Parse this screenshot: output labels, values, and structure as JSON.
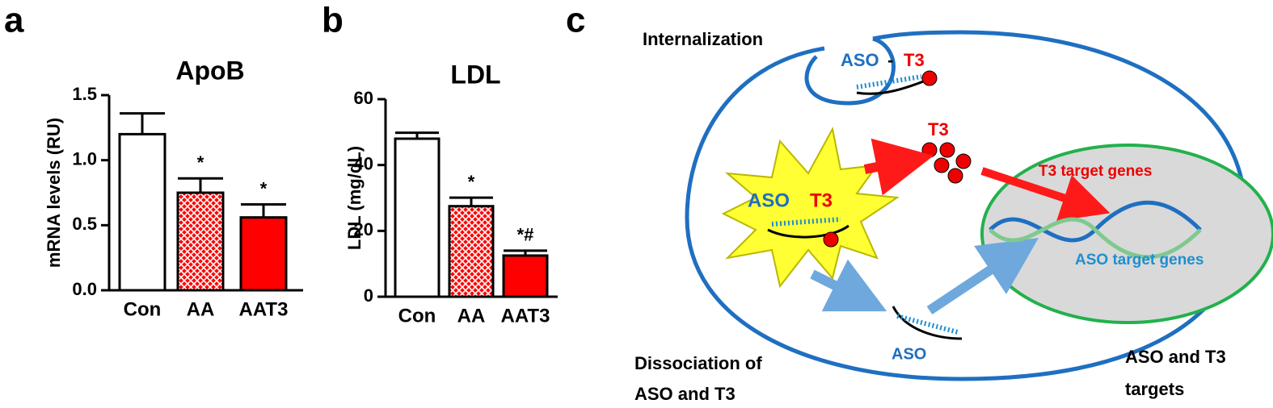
{
  "chart_data": [
    {
      "type": "bar",
      "panel": "a",
      "title": "ApoB",
      "y_label": "mRNA levels (RU)",
      "categories": [
        "Con",
        "AA",
        "AAT3"
      ],
      "values": [
        1.2,
        0.75,
        0.56
      ],
      "errors": [
        0.16,
        0.11,
        0.1
      ],
      "annotations": [
        null,
        "*",
        "*"
      ],
      "colors": [
        "#ffffff",
        "#ff0000",
        "#ff0000"
      ],
      "patterns": [
        "solid",
        "crosshatch",
        "solid"
      ],
      "ylim": [
        0,
        1.5
      ],
      "yticks": [
        {
          "value": 0,
          "label": "0.0"
        },
        0.5,
        {
          "value": 1,
          "label": "1.0"
        },
        1.5
      ]
    },
    {
      "type": "bar",
      "panel": "b",
      "title": "LDL",
      "y_label": "LDL (mg/dL)",
      "categories": [
        "Con",
        "AA",
        "AAT3"
      ],
      "values": [
        48,
        27.5,
        12.5
      ],
      "errors": [
        1.8,
        2.6,
        1.5
      ],
      "annotations": [
        null,
        "*",
        "*#"
      ],
      "colors": [
        "#ffffff",
        "#ff0000",
        "#ff0000"
      ],
      "patterns": [
        "solid",
        "crosshatch",
        "solid"
      ],
      "ylim": [
        0,
        60
      ],
      "yticks": [
        0,
        20,
        40,
        60
      ]
    }
  ],
  "diagram": {
    "panel": "c",
    "internalization": "Internalization",
    "vesicle": {
      "aso": "ASO",
      "dash": "-",
      "t3": "T3"
    },
    "free_t3": "T3",
    "complex": {
      "aso": "ASO",
      "t3": "T3"
    },
    "t3_targets": "T3 target genes",
    "aso_targets": "ASO target genes",
    "free_aso": "ASO",
    "dissociation": [
      "Dissociation of",
      "ASO and T3"
    ],
    "targets": [
      "ASO and T3",
      "targets"
    ]
  }
}
